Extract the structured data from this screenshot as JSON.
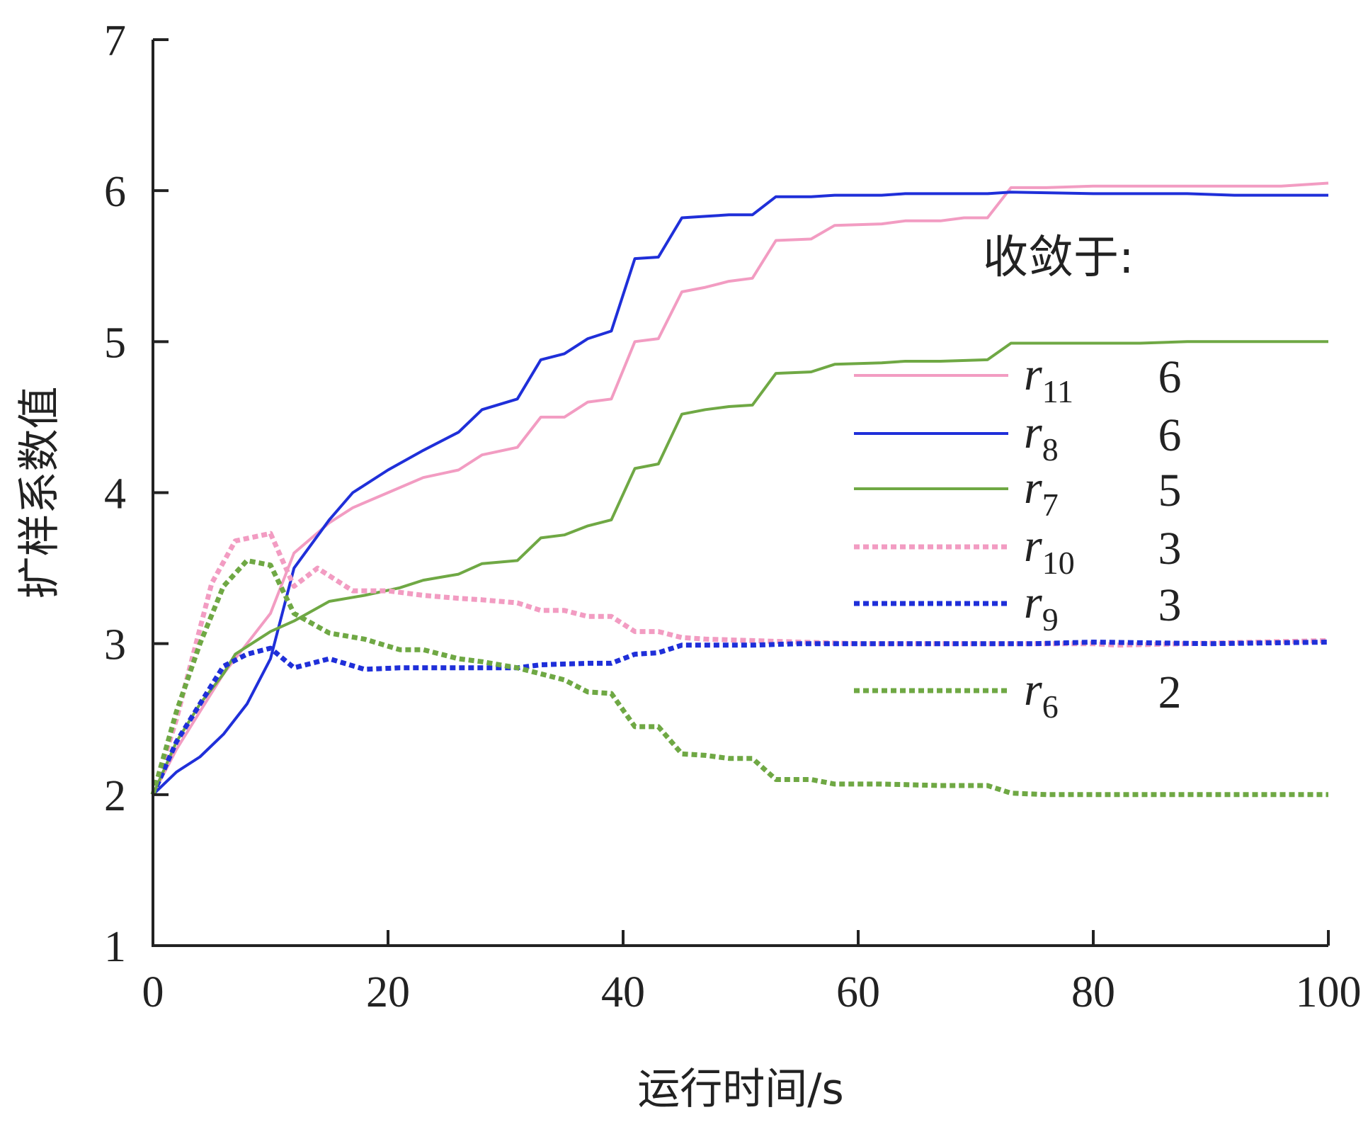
{
  "chart_data": {
    "type": "line",
    "xlabel": "运行时间/s",
    "ylabel": "扩样系数值",
    "xlim": [
      0,
      100
    ],
    "ylim": [
      1,
      7
    ],
    "xticks": [
      0,
      20,
      40,
      60,
      80,
      100
    ],
    "yticks": [
      1,
      2,
      3,
      4,
      5,
      6,
      7
    ],
    "grid": false,
    "legend": {
      "title": "收敛于:",
      "position": "right",
      "entries": [
        {
          "name": "r",
          "sub": "11",
          "value": "6"
        },
        {
          "name": "r",
          "sub": "8",
          "value": "6"
        },
        {
          "name": "r",
          "sub": "7",
          "value": "5"
        },
        {
          "name": "r",
          "sub": "10",
          "value": "3"
        },
        {
          "name": "r",
          "sub": "9",
          "value": "3"
        },
        {
          "name": "r",
          "sub": "6",
          "value": "2"
        }
      ]
    },
    "series": [
      {
        "legend_index": 0,
        "color": "#f29cc2",
        "style": "solid",
        "points": [
          [
            0,
            2.0
          ],
          [
            2,
            2.3
          ],
          [
            4,
            2.55
          ],
          [
            6,
            2.8
          ],
          [
            8,
            3.0
          ],
          [
            10,
            3.2
          ],
          [
            12,
            3.6
          ],
          [
            15,
            3.8
          ],
          [
            17,
            3.9
          ],
          [
            20,
            4.0
          ],
          [
            23,
            4.1
          ],
          [
            26,
            4.15
          ],
          [
            28,
            4.25
          ],
          [
            31,
            4.3
          ],
          [
            33,
            4.5
          ],
          [
            35,
            4.5
          ],
          [
            37,
            4.6
          ],
          [
            39,
            4.62
          ],
          [
            41,
            5.0
          ],
          [
            43,
            5.02
          ],
          [
            45,
            5.33
          ],
          [
            47,
            5.36
          ],
          [
            49,
            5.4
          ],
          [
            51,
            5.42
          ],
          [
            53,
            5.67
          ],
          [
            56,
            5.68
          ],
          [
            58,
            5.77
          ],
          [
            62,
            5.78
          ],
          [
            64,
            5.8
          ],
          [
            67,
            5.8
          ],
          [
            69,
            5.82
          ],
          [
            71,
            5.82
          ],
          [
            73,
            6.02
          ],
          [
            76,
            6.02
          ],
          [
            80,
            6.03
          ],
          [
            84,
            6.03
          ],
          [
            88,
            6.03
          ],
          [
            92,
            6.03
          ],
          [
            96,
            6.03
          ],
          [
            100,
            6.05
          ]
        ]
      },
      {
        "legend_index": 1,
        "color": "#1f2fd9",
        "style": "solid",
        "points": [
          [
            0,
            2.0
          ],
          [
            2,
            2.15
          ],
          [
            4,
            2.25
          ],
          [
            6,
            2.4
          ],
          [
            8,
            2.6
          ],
          [
            10,
            2.9
          ],
          [
            12,
            3.5
          ],
          [
            15,
            3.82
          ],
          [
            17,
            4.0
          ],
          [
            20,
            4.15
          ],
          [
            23,
            4.28
          ],
          [
            26,
            4.4
          ],
          [
            28,
            4.55
          ],
          [
            31,
            4.62
          ],
          [
            33,
            4.88
          ],
          [
            35,
            4.92
          ],
          [
            37,
            5.02
          ],
          [
            39,
            5.07
          ],
          [
            41,
            5.55
          ],
          [
            43,
            5.56
          ],
          [
            45,
            5.82
          ],
          [
            47,
            5.83
          ],
          [
            49,
            5.84
          ],
          [
            51,
            5.84
          ],
          [
            53,
            5.96
          ],
          [
            56,
            5.96
          ],
          [
            58,
            5.97
          ],
          [
            62,
            5.97
          ],
          [
            64,
            5.98
          ],
          [
            67,
            5.98
          ],
          [
            71,
            5.98
          ],
          [
            73,
            5.99
          ],
          [
            80,
            5.98
          ],
          [
            84,
            5.98
          ],
          [
            88,
            5.98
          ],
          [
            92,
            5.97
          ],
          [
            96,
            5.97
          ],
          [
            100,
            5.97
          ]
        ]
      },
      {
        "legend_index": 2,
        "color": "#6fa844",
        "style": "solid",
        "points": [
          [
            0,
            2.0
          ],
          [
            2,
            2.35
          ],
          [
            4,
            2.6
          ],
          [
            6,
            2.8
          ],
          [
            7,
            2.93
          ],
          [
            10,
            3.08
          ],
          [
            12,
            3.15
          ],
          [
            15,
            3.28
          ],
          [
            18,
            3.32
          ],
          [
            21,
            3.37
          ],
          [
            23,
            3.42
          ],
          [
            26,
            3.46
          ],
          [
            28,
            3.53
          ],
          [
            31,
            3.55
          ],
          [
            33,
            3.7
          ],
          [
            35,
            3.72
          ],
          [
            37,
            3.78
          ],
          [
            39,
            3.82
          ],
          [
            41,
            4.16
          ],
          [
            43,
            4.19
          ],
          [
            45,
            4.52
          ],
          [
            47,
            4.55
          ],
          [
            49,
            4.57
          ],
          [
            51,
            4.58
          ],
          [
            53,
            4.79
          ],
          [
            56,
            4.8
          ],
          [
            58,
            4.85
          ],
          [
            62,
            4.86
          ],
          [
            64,
            4.87
          ],
          [
            67,
            4.87
          ],
          [
            71,
            4.88
          ],
          [
            73,
            4.99
          ],
          [
            80,
            4.99
          ],
          [
            84,
            4.99
          ],
          [
            88,
            5.0
          ],
          [
            92,
            5.0
          ],
          [
            96,
            5.0
          ],
          [
            100,
            5.0
          ]
        ]
      },
      {
        "legend_index": 3,
        "color": "#f29cc2",
        "style": "dotted",
        "points": [
          [
            0,
            2.0
          ],
          [
            2,
            2.5
          ],
          [
            4,
            3.1
          ],
          [
            5,
            3.4
          ],
          [
            7,
            3.68
          ],
          [
            10,
            3.73
          ],
          [
            12,
            3.38
          ],
          [
            14,
            3.5
          ],
          [
            17,
            3.35
          ],
          [
            20,
            3.35
          ],
          [
            23,
            3.32
          ],
          [
            26,
            3.3
          ],
          [
            28,
            3.29
          ],
          [
            31,
            3.27
          ],
          [
            33,
            3.22
          ],
          [
            35,
            3.22
          ],
          [
            37,
            3.18
          ],
          [
            39,
            3.18
          ],
          [
            41,
            3.08
          ],
          [
            43,
            3.08
          ],
          [
            45,
            3.04
          ],
          [
            47,
            3.03
          ],
          [
            51,
            3.02
          ],
          [
            55,
            3.01
          ],
          [
            60,
            3.0
          ],
          [
            70,
            3.0
          ],
          [
            80,
            3.0
          ],
          [
            82,
            2.99
          ],
          [
            88,
            3.0
          ],
          [
            100,
            3.02
          ]
        ]
      },
      {
        "legend_index": 4,
        "color": "#1f2fd9",
        "style": "dotted",
        "points": [
          [
            0,
            2.0
          ],
          [
            2,
            2.35
          ],
          [
            4,
            2.6
          ],
          [
            6,
            2.85
          ],
          [
            8,
            2.93
          ],
          [
            10,
            2.97
          ],
          [
            12,
            2.84
          ],
          [
            15,
            2.9
          ],
          [
            18,
            2.83
          ],
          [
            21,
            2.84
          ],
          [
            26,
            2.84
          ],
          [
            31,
            2.84
          ],
          [
            33,
            2.86
          ],
          [
            37,
            2.87
          ],
          [
            39,
            2.87
          ],
          [
            41,
            2.93
          ],
          [
            43,
            2.94
          ],
          [
            45,
            2.99
          ],
          [
            51,
            2.99
          ],
          [
            55,
            3.0
          ],
          [
            60,
            3.0
          ],
          [
            70,
            3.0
          ],
          [
            75,
            3.0
          ],
          [
            80,
            3.01
          ],
          [
            90,
            3.0
          ],
          [
            100,
            3.01
          ]
        ]
      },
      {
        "legend_index": 5,
        "color": "#6fa844",
        "style": "dotted",
        "points": [
          [
            0,
            2.0
          ],
          [
            2,
            2.55
          ],
          [
            4,
            3.0
          ],
          [
            6,
            3.38
          ],
          [
            8,
            3.55
          ],
          [
            10,
            3.52
          ],
          [
            12,
            3.2
          ],
          [
            15,
            3.07
          ],
          [
            18,
            3.03
          ],
          [
            21,
            2.96
          ],
          [
            23,
            2.96
          ],
          [
            26,
            2.9
          ],
          [
            28,
            2.88
          ],
          [
            31,
            2.84
          ],
          [
            33,
            2.8
          ],
          [
            35,
            2.76
          ],
          [
            37,
            2.68
          ],
          [
            39,
            2.67
          ],
          [
            41,
            2.45
          ],
          [
            43,
            2.45
          ],
          [
            45,
            2.27
          ],
          [
            47,
            2.26
          ],
          [
            49,
            2.24
          ],
          [
            51,
            2.24
          ],
          [
            53,
            2.1
          ],
          [
            56,
            2.1
          ],
          [
            58,
            2.07
          ],
          [
            62,
            2.07
          ],
          [
            67,
            2.06
          ],
          [
            71,
            2.06
          ],
          [
            73,
            2.01
          ],
          [
            76,
            2.0
          ],
          [
            80,
            2.0
          ],
          [
            88,
            2.0
          ],
          [
            100,
            2.0
          ]
        ]
      }
    ]
  }
}
